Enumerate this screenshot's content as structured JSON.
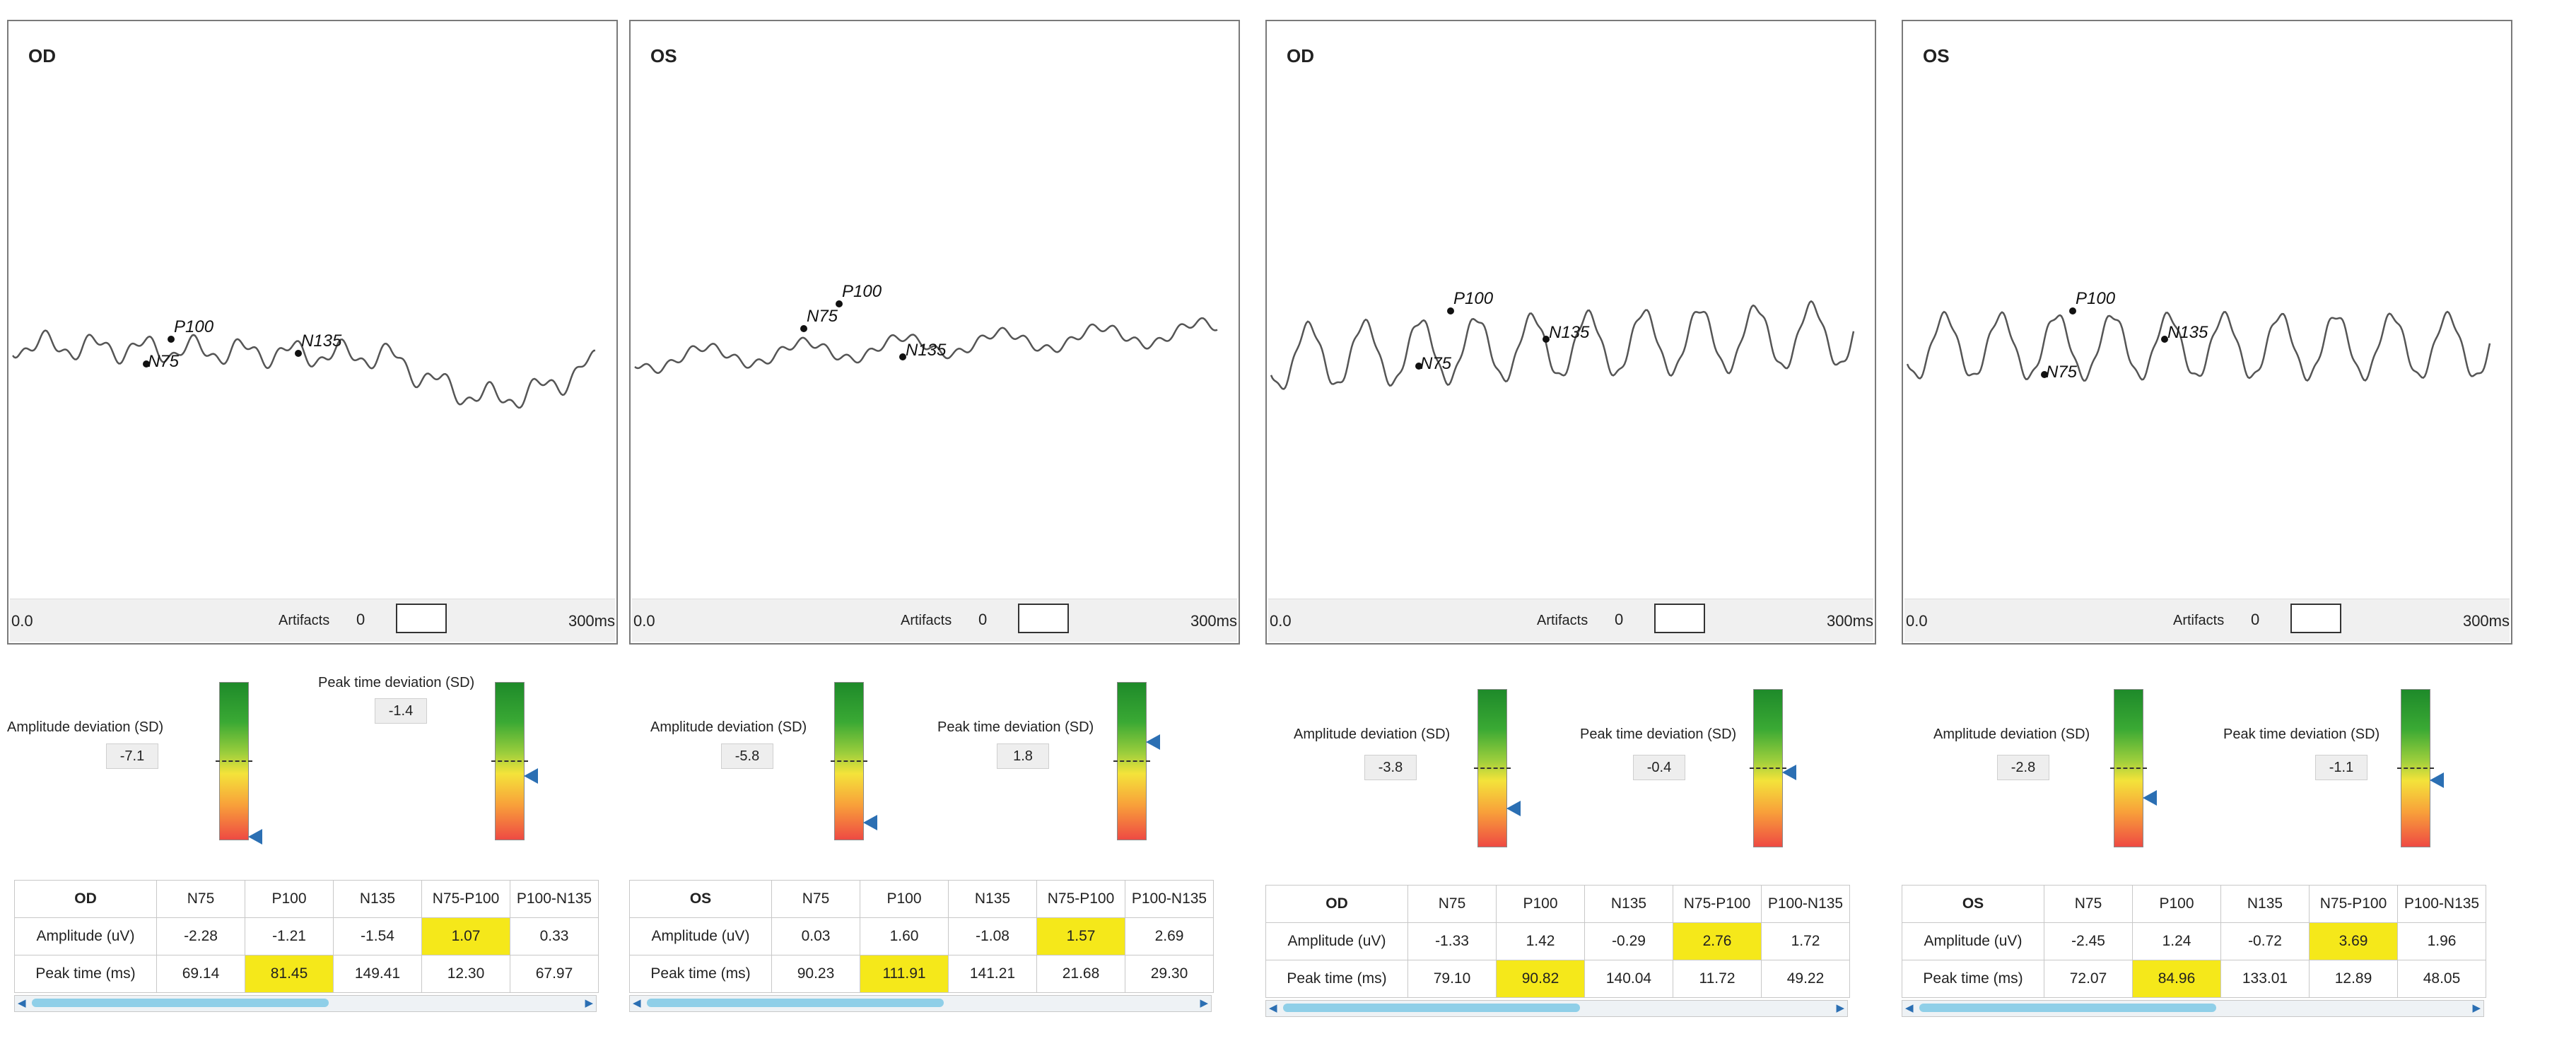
{
  "panels": [
    {
      "eye": "OD",
      "wave": {
        "peaks": [
          {
            "label": "N75"
          },
          {
            "label": "P100"
          },
          {
            "label": "N135"
          }
        ]
      },
      "axis": {
        "start": "0.0",
        "end": "300ms"
      },
      "artifacts": {
        "label": "Artifacts",
        "value": "0"
      },
      "amplitude_dev": {
        "label": "Amplitude deviation (SD)",
        "value": "-7.1",
        "scale_sd": -7.1
      },
      "peak_time_dev": {
        "label": "Peak time deviation (SD)",
        "value": "-1.4",
        "scale_sd": -1.4
      },
      "table": {
        "eye": "OD",
        "columns": [
          "N75",
          "P100",
          "N135",
          "N75-P100",
          "P100-N135"
        ],
        "rows": [
          {
            "label": "Amplitude (uV)",
            "values": [
              "-2.28",
              "-1.21",
              "-1.54",
              "1.07",
              "0.33"
            ]
          },
          {
            "label": "Peak time (ms)",
            "values": [
              "69.14",
              "81.45",
              "149.41",
              "12.30",
              "67.97"
            ]
          }
        ]
      }
    },
    {
      "eye": "OS",
      "wave": {
        "peaks": [
          {
            "label": "N75"
          },
          {
            "label": "P100"
          },
          {
            "label": "N135"
          }
        ]
      },
      "axis": {
        "start": "0.0",
        "end": "300ms"
      },
      "artifacts": {
        "label": "Artifacts",
        "value": "0"
      },
      "amplitude_dev": {
        "label": "Amplitude deviation (SD)",
        "value": "-5.8",
        "scale_sd": -5.8
      },
      "peak_time_dev": {
        "label": "Peak time deviation (SD)",
        "value": "1.8",
        "scale_sd": 1.8
      },
      "table": {
        "eye": "OS",
        "columns": [
          "N75",
          "P100",
          "N135",
          "N75-P100",
          "P100-N135"
        ],
        "rows": [
          {
            "label": "Amplitude (uV)",
            "values": [
              "0.03",
              "1.60",
              "-1.08",
              "1.57",
              "2.69"
            ]
          },
          {
            "label": "Peak time (ms)",
            "values": [
              "90.23",
              "111.91",
              "141.21",
              "21.68",
              "29.30"
            ]
          }
        ]
      }
    },
    {
      "eye": "OD",
      "wave": {
        "peaks": [
          {
            "label": "N75"
          },
          {
            "label": "P100"
          },
          {
            "label": "N135"
          }
        ]
      },
      "axis": {
        "start": "0.0",
        "end": "300ms"
      },
      "artifacts": {
        "label": "Artifacts",
        "value": "0"
      },
      "amplitude_dev": {
        "label": "Amplitude deviation (SD)",
        "value": "-3.8",
        "scale_sd": -3.8
      },
      "peak_time_dev": {
        "label": "Peak time deviation (SD)",
        "value": "-0.4",
        "scale_sd": -0.4
      },
      "table": {
        "eye": "OD",
        "columns": [
          "N75",
          "P100",
          "N135",
          "N75-P100",
          "P100-N135"
        ],
        "rows": [
          {
            "label": "Amplitude (uV)",
            "values": [
              "-1.33",
              "1.42",
              "-0.29",
              "2.76",
              "1.72"
            ]
          },
          {
            "label": "Peak time (ms)",
            "values": [
              "79.10",
              "90.82",
              "140.04",
              "11.72",
              "49.22"
            ]
          }
        ]
      }
    },
    {
      "eye": "OS",
      "wave": {
        "peaks": [
          {
            "label": "N75"
          },
          {
            "label": "P100"
          },
          {
            "label": "N135"
          }
        ]
      },
      "axis": {
        "start": "0.0",
        "end": "300ms"
      },
      "artifacts": {
        "label": "Artifacts",
        "value": "0"
      },
      "amplitude_dev": {
        "label": "Amplitude deviation (SD)",
        "value": "-2.8",
        "scale_sd": -2.8
      },
      "peak_time_dev": {
        "label": "Peak time deviation (SD)",
        "value": "-1.1",
        "scale_sd": -1.1
      },
      "table": {
        "eye": "OS",
        "columns": [
          "N75",
          "P100",
          "N135",
          "N75-P100",
          "P100-N135"
        ],
        "rows": [
          {
            "label": "Amplitude (uV)",
            "values": [
              "-2.45",
              "1.24",
              "-0.72",
              "3.69",
              "1.96"
            ]
          },
          {
            "label": "Peak time (ms)",
            "values": [
              "72.07",
              "84.96",
              "133.01",
              "12.89",
              "48.05"
            ]
          }
        ]
      }
    }
  ],
  "colors": {
    "highlight": "#f5e81a",
    "marker": "#2b6fb3",
    "trace": "#555555"
  }
}
